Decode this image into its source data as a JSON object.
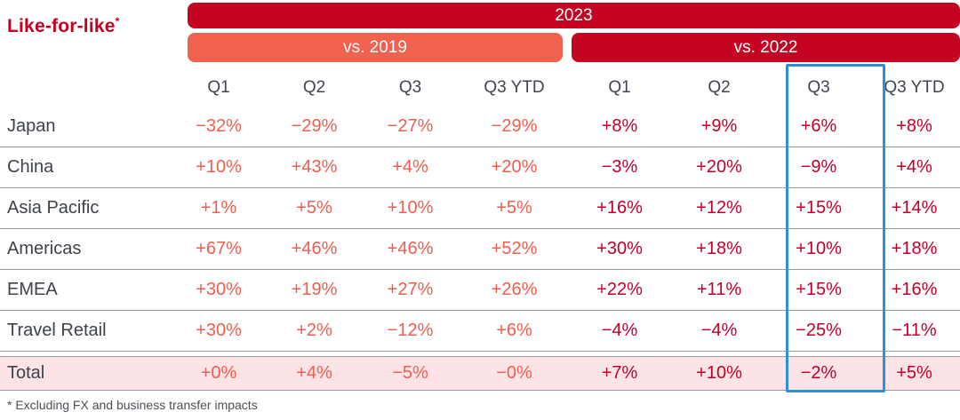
{
  "title": {
    "text": "Like-for-like",
    "footnote_marker": "*"
  },
  "header": {
    "year_label": "2023",
    "group_2019_label": "vs. 2019",
    "group_2022_label": "vs. 2022",
    "columns": [
      "Q1",
      "Q2",
      "Q3",
      "Q3 YTD",
      "Q1",
      "Q2",
      "Q3",
      "Q3 YTD"
    ]
  },
  "table": {
    "rows": [
      {
        "label": "Japan",
        "cells": [
          "−32%",
          "−29%",
          "−27%",
          "−29%",
          "+8%",
          "+9%",
          "+6%",
          "+8%"
        ]
      },
      {
        "label": "China",
        "cells": [
          "+10%",
          "+43%",
          "+4%",
          "+20%",
          "−3%",
          "+20%",
          "−9%",
          "+4%"
        ]
      },
      {
        "label": "Asia Pacific",
        "cells": [
          "+1%",
          "+5%",
          "+10%",
          "+5%",
          "+16%",
          "+12%",
          "+15%",
          "+14%"
        ]
      },
      {
        "label": "Americas",
        "cells": [
          "+67%",
          "+46%",
          "+46%",
          "+52%",
          "+30%",
          "+18%",
          "+10%",
          "+18%"
        ]
      },
      {
        "label": "EMEA",
        "cells": [
          "+30%",
          "+19%",
          "+27%",
          "+26%",
          "+22%",
          "+11%",
          "+15%",
          "+16%"
        ]
      },
      {
        "label": "Travel Retail",
        "cells": [
          "+30%",
          "+2%",
          "−12%",
          "+6%",
          "−4%",
          "−4%",
          "−25%",
          "−11%"
        ]
      }
    ],
    "total_row": {
      "label": "Total",
      "cells": [
        "+0%",
        "+4%",
        "−5%",
        "−0%",
        "+7%",
        "+10%",
        "−2%",
        "+5%"
      ]
    }
  },
  "footnote": "* Excluding FX and business transfer impacts",
  "colors": {
    "brand_red": "#c40422",
    "accent_orange": "#f0614e",
    "value_vs2019_text": "#ef5d4f",
    "value_vs2022_text": "#c10029",
    "total_row_bg": "#fce4e6",
    "highlight_blue": "#2e90d9",
    "label_text": "#3d424b"
  },
  "chart_data": {
    "type": "table",
    "title": "Like-for-like",
    "year": "2023",
    "unit": "%",
    "footnote": "* Excluding FX and business transfer impacts",
    "column_groups": [
      {
        "name": "vs. 2019",
        "quarters": [
          "Q1",
          "Q2",
          "Q3",
          "Q3 YTD"
        ]
      },
      {
        "name": "vs. 2022",
        "quarters": [
          "Q1",
          "Q2",
          "Q3",
          "Q3 YTD"
        ]
      }
    ],
    "rows": [
      {
        "label": "Japan",
        "vs_2019": [
          -32,
          -29,
          -27,
          -29
        ],
        "vs_2022": [
          8,
          9,
          6,
          8
        ]
      },
      {
        "label": "China",
        "vs_2019": [
          10,
          43,
          4,
          20
        ],
        "vs_2022": [
          -3,
          20,
          -9,
          4
        ]
      },
      {
        "label": "Asia Pacific",
        "vs_2019": [
          1,
          5,
          10,
          5
        ],
        "vs_2022": [
          16,
          12,
          15,
          14
        ]
      },
      {
        "label": "Americas",
        "vs_2019": [
          67,
          46,
          46,
          52
        ],
        "vs_2022": [
          30,
          18,
          10,
          18
        ]
      },
      {
        "label": "EMEA",
        "vs_2019": [
          30,
          19,
          27,
          26
        ],
        "vs_2022": [
          22,
          11,
          15,
          16
        ]
      },
      {
        "label": "Travel Retail",
        "vs_2019": [
          30,
          2,
          -12,
          6
        ],
        "vs_2022": [
          -4,
          -4,
          -25,
          -11
        ]
      },
      {
        "label": "Total",
        "vs_2019": [
          0,
          4,
          -5,
          0
        ],
        "vs_2022": [
          7,
          10,
          -2,
          5
        ]
      }
    ],
    "highlight": "vs. 2022 Q3 column outlined in blue",
    "layout": {
      "total_row_shaded": true,
      "grid": "horizontal rules only"
    }
  }
}
